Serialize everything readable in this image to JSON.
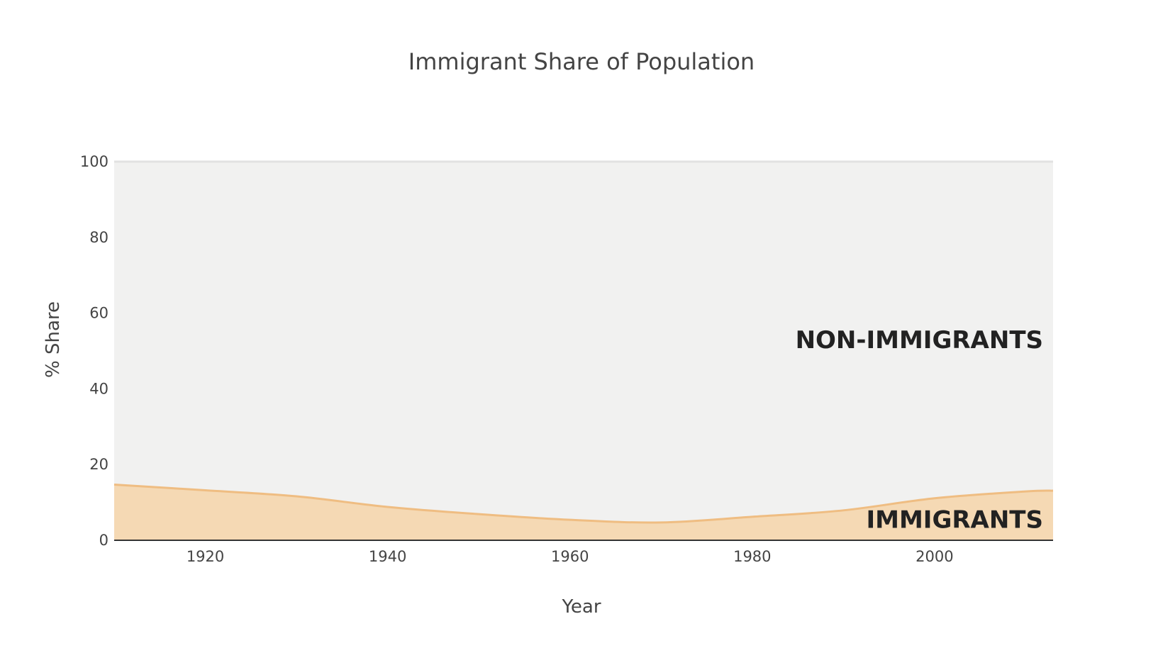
{
  "chart_data": {
    "type": "area",
    "stacked": true,
    "title": "Immigrant Share of Population",
    "xlabel": "Year",
    "ylabel": "% Share",
    "xlim": [
      1910,
      2013
    ],
    "ylim": [
      0,
      100
    ],
    "x_ticks": [
      1920,
      1940,
      1960,
      1980,
      2000
    ],
    "y_ticks": [
      0,
      20,
      40,
      60,
      80,
      100
    ],
    "grid": true,
    "x": [
      1910,
      1920,
      1930,
      1940,
      1950,
      1960,
      1970,
      1980,
      1990,
      2000,
      2010,
      2013
    ],
    "series": [
      {
        "name": "IMMIGRANTS",
        "label": "IMMIGRANTS",
        "values": [
          14.7,
          13.2,
          11.6,
          8.8,
          6.9,
          5.4,
          4.7,
          6.2,
          7.9,
          11.1,
          12.9,
          13.1
        ],
        "color": "#f5d9b4",
        "line_color": "#efbd82"
      },
      {
        "name": "NON-IMMIGRANTS",
        "label": "NON-IMMIGRANTS",
        "values": [
          85.3,
          86.8,
          88.4,
          91.2,
          93.1,
          94.6,
          95.3,
          93.8,
          92.1,
          88.9,
          87.1,
          86.9
        ],
        "color": "#f1f1f0",
        "line_color": "#e2e2e2"
      }
    ]
  },
  "colors": {
    "background": "#ffffff",
    "text": "#444444",
    "grid": "#e6e6e6",
    "axis_line": "#333333"
  }
}
